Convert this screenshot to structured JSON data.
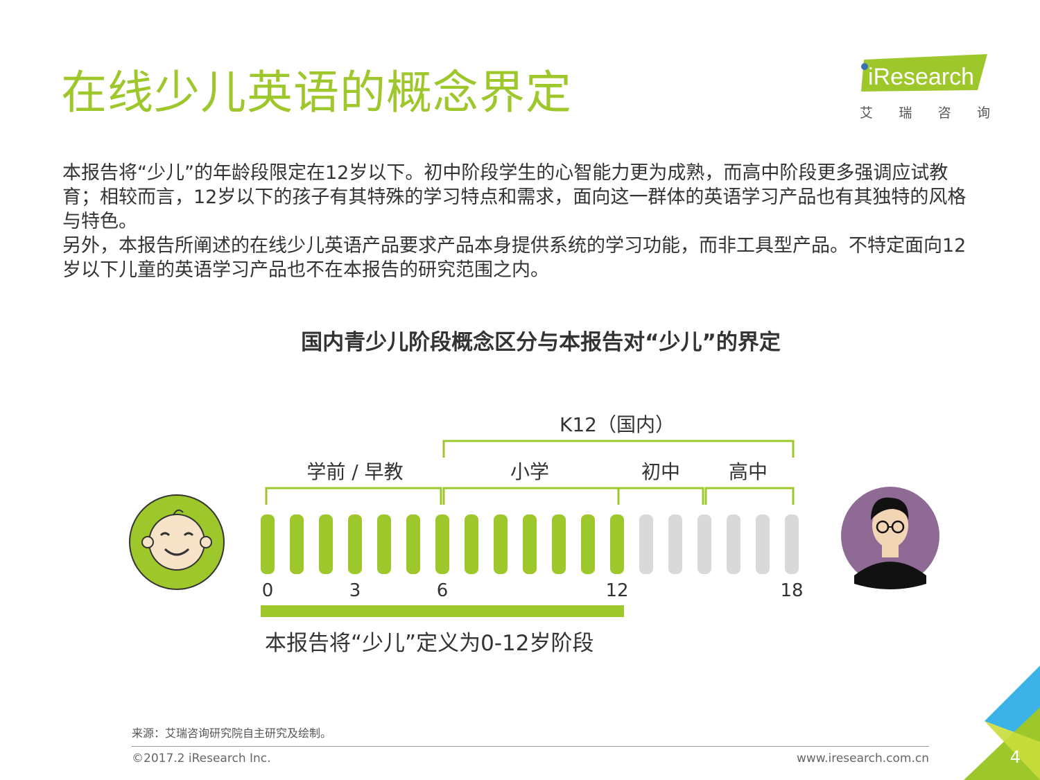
{
  "title": "在线少儿英语的概念界定",
  "logo": {
    "brand": "iResearch",
    "cn_chars": [
      "艾",
      "瑞",
      "咨",
      "询"
    ]
  },
  "intro": {
    "para1": "本报告将“少儿”的年龄段限定在12岁以下。初中阶段学生的心智能力更为成熟，而高中阶段更多强调应试教育；相较而言，12岁以下的孩子有其特殊的学习特点和需求，面向这一群体的英语学习产品也有其独特的风格与特色。",
    "para2": "另外，本报告所阐述的在线少儿英语产品要求产品本身提供系统的学习功能，而非工具型产品。不特定面向12岁以下儿童的英语学习产品也不在本报告的研究范围之内。"
  },
  "diagram": {
    "title": "国内青少儿阶段概念区分与本报告对“少儿”的界定",
    "k12_label": "K12（国内）",
    "stages": [
      {
        "label": "学前 / 早教",
        "from": 0,
        "to": 6
      },
      {
        "label": "小学",
        "from": 6,
        "to": 12
      },
      {
        "label": "初中",
        "from": 12,
        "to": 15
      },
      {
        "label": "高中",
        "from": 15,
        "to": 18
      }
    ],
    "ticks": [
      "0",
      "3",
      "6",
      "12",
      "18"
    ],
    "years_total": 18,
    "highlighted_until": 12,
    "definition": "本报告将“少儿”定义为0-12岁阶段"
  },
  "colors": {
    "accent": "#9dc72b",
    "inactive": "#d9d9d9",
    "baby_bg": "#9dc72b",
    "teen_bg": "#8e6a95"
  },
  "footer": {
    "source": "来源：艾瑞咨询研究院自主研究及绘制。",
    "copyright": "©2017.2 iResearch Inc.",
    "url": "www.iresearch.com.cn",
    "page": "4"
  }
}
